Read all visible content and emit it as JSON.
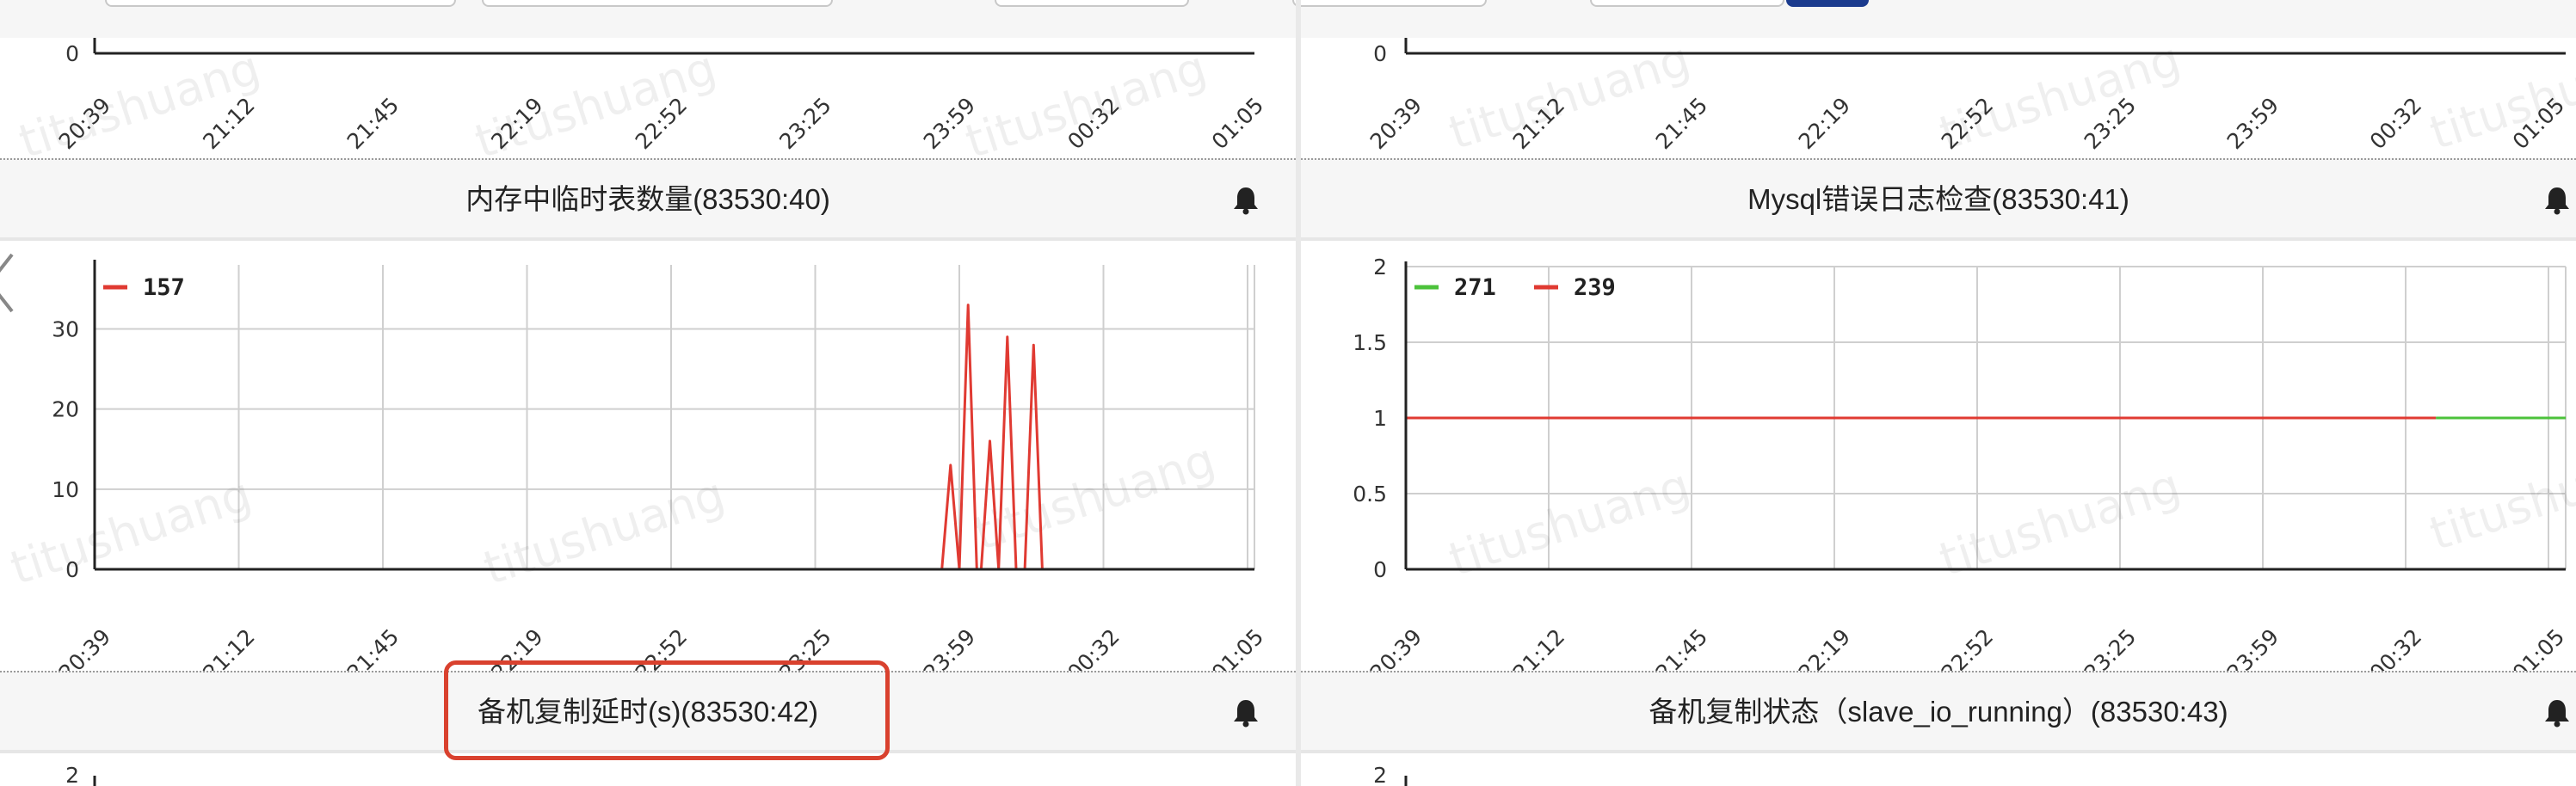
{
  "x_ticks": [
    "20:39",
    "21:12",
    "21:45",
    "22:19",
    "22:52",
    "23:25",
    "23:59",
    "00:32",
    "01:05"
  ],
  "watermark_text": "titushuang",
  "panels_top_row": [
    {
      "name": "top-left",
      "y_max": "0"
    },
    {
      "name": "top-right",
      "y_max": "0"
    }
  ],
  "panels": [
    {
      "title": "内存中临时表数量(83530:40)",
      "legend": [
        {
          "label": "157",
          "color": "#e03a32"
        }
      ],
      "y_ticks": [
        "0",
        "10",
        "20",
        "30"
      ]
    },
    {
      "title": "Mysql错误日志检查(83530:41)",
      "legend": [
        {
          "label": "271",
          "color": "#4cc23b"
        },
        {
          "label": "239",
          "color": "#e03a32"
        }
      ],
      "y_ticks": [
        "0",
        "0.5",
        "1",
        "1.5",
        "2"
      ]
    },
    {
      "title": "备机复制延时(s)(83530:42)"
    },
    {
      "title": "备机复制状态（slave_io_running）(83530:43)"
    }
  ],
  "bottom_row_y_max": "2",
  "chart_data": [
    {
      "type": "line",
      "title": "",
      "x": [
        "20:39",
        "21:12",
        "21:45",
        "22:19",
        "22:52",
        "23:25",
        "23:59",
        "00:32",
        "01:05"
      ],
      "ylim": [
        0,
        38
      ],
      "series": [
        {
          "name": "157",
          "color": "#e03a32",
          "points": [
            [
              "23:53",
              0
            ],
            [
              "23:55",
              13
            ],
            [
              "23:57",
              0
            ],
            [
              "23:59",
              33
            ],
            [
              "00:01",
              0
            ],
            [
              "00:02",
              0
            ],
            [
              "00:04",
              16
            ],
            [
              "00:06",
              0
            ],
            [
              "00:08",
              29
            ],
            [
              "00:10",
              0
            ],
            [
              "00:12",
              0
            ],
            [
              "00:14",
              28
            ],
            [
              "00:16",
              0
            ]
          ]
        }
      ]
    },
    {
      "type": "line",
      "title": "",
      "x": [
        "20:39",
        "21:12",
        "21:45",
        "22:19",
        "22:52",
        "23:25",
        "23:59",
        "00:32",
        "01:05"
      ],
      "ylim": [
        0,
        2
      ],
      "series": [
        {
          "name": "239",
          "color": "#e03a32",
          "points": [
            [
              "20:39",
              1
            ],
            [
              "00:37",
              1
            ]
          ]
        },
        {
          "name": "271",
          "color": "#4cc23b",
          "points": [
            [
              "00:37",
              1
            ],
            [
              "01:07",
              1
            ]
          ]
        }
      ]
    }
  ]
}
